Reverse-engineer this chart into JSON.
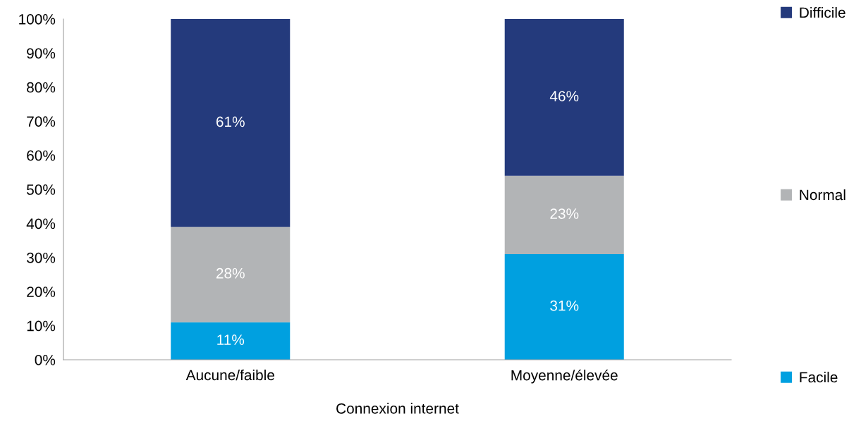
{
  "chart_data": {
    "type": "bar",
    "stacked": true,
    "xlabel": "Connexion internet",
    "categories": [
      "Aucune/faible",
      "Moyenne/élevée"
    ],
    "series": [
      {
        "name": "Facile",
        "color": "#00a0e0",
        "values": [
          11,
          31
        ],
        "value_labels": [
          "11%",
          "31%"
        ]
      },
      {
        "name": "Normal",
        "color": "#b2b4b6",
        "values": [
          28,
          23
        ],
        "value_labels": [
          "28%",
          "23%"
        ]
      },
      {
        "name": "Difficile",
        "color": "#243a7c",
        "values": [
          61,
          46
        ],
        "value_labels": [
          "61%",
          "46%"
        ]
      }
    ],
    "ylim": [
      0,
      100
    ],
    "yticks": [
      {
        "value": 0,
        "label": "0%"
      },
      {
        "value": 10,
        "label": "10%"
      },
      {
        "value": 20,
        "label": "20%"
      },
      {
        "value": 30,
        "label": "30%"
      },
      {
        "value": 40,
        "label": "40%"
      },
      {
        "value": 50,
        "label": "50%"
      },
      {
        "value": 60,
        "label": "60%"
      },
      {
        "value": 70,
        "label": "70%"
      },
      {
        "value": 80,
        "label": "80%"
      },
      {
        "value": 90,
        "label": "90%"
      },
      {
        "value": 100,
        "label": "100%"
      }
    ],
    "legend": "right"
  }
}
